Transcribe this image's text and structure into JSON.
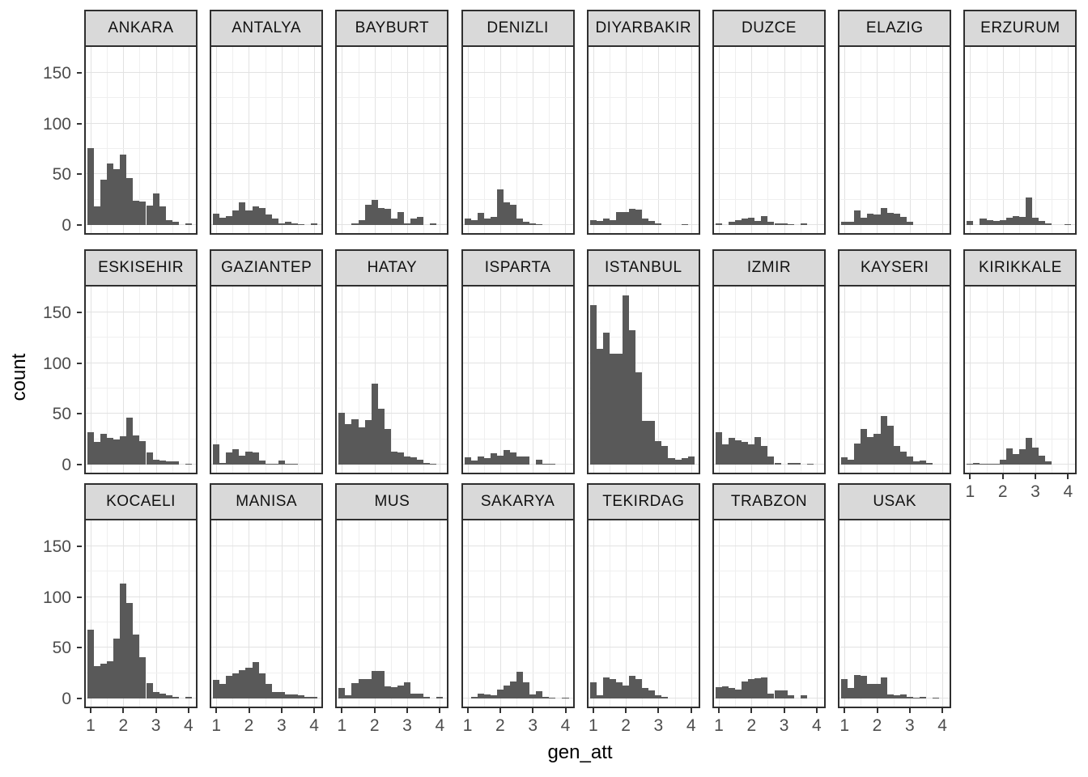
{
  "figure": {
    "y_axis_title": "count",
    "x_axis_title": "gen_att"
  },
  "style": {
    "bar_color": "#595959",
    "strip_background": "#D9D9D9",
    "panel_border": "#2F2F2F",
    "grid_major": "#E2E2E2",
    "grid_minor": "#EFEFEF",
    "tick_label_color": "#4D4D4D"
  },
  "chart_data": {
    "type": "bar",
    "subtype": "faceted-histogram",
    "title": "",
    "xlabel": "gen_att",
    "ylabel": "count",
    "grid": true,
    "x_ticks": [
      1,
      2,
      3,
      4
    ],
    "x_tick_labels": [
      "1",
      "2",
      "3",
      "4"
    ],
    "y_ticks": [
      0,
      50,
      100,
      150
    ],
    "y_tick_labels": [
      "0",
      "50",
      "100",
      "150"
    ],
    "y_minor_gridlines": [
      25,
      75,
      125
    ],
    "x_minor_gridlines": [
      1.5,
      2.5,
      3.5
    ],
    "xlim": [
      0.85,
      4.35
    ],
    "ylim": [
      -10,
      174
    ],
    "bin_width": 0.2,
    "bin_centers": [
      1.0,
      1.2,
      1.4,
      1.6,
      1.8,
      2.0,
      2.2,
      2.4,
      2.6,
      2.8,
      3.0,
      3.2,
      3.4,
      3.6,
      3.8,
      4.0
    ],
    "facets": [
      {
        "label": "ANKARA",
        "counts": [
          76,
          18,
          45,
          61,
          55,
          69,
          46,
          24,
          23,
          19,
          31,
          18,
          5,
          3,
          0,
          2
        ]
      },
      {
        "label": "ANTALYA",
        "counts": [
          11,
          7,
          9,
          14,
          22,
          14,
          18,
          17,
          10,
          6,
          2,
          3,
          2,
          1,
          0,
          2
        ]
      },
      {
        "label": "BAYBURT",
        "counts": [
          0,
          0,
          2,
          5,
          20,
          25,
          17,
          16,
          6,
          13,
          2,
          6,
          8,
          0,
          2,
          0
        ]
      },
      {
        "label": "DENIZLI",
        "counts": [
          6,
          5,
          12,
          6,
          8,
          35,
          22,
          20,
          6,
          3,
          2,
          1,
          0,
          0,
          0,
          0
        ]
      },
      {
        "label": "DIYARBAKIR",
        "counts": [
          5,
          4,
          6,
          5,
          13,
          13,
          16,
          15,
          6,
          4,
          2,
          0,
          0,
          0,
          1,
          0
        ]
      },
      {
        "label": "DUZCE",
        "counts": [
          2,
          0,
          3,
          5,
          6,
          7,
          4,
          9,
          3,
          2,
          2,
          1,
          0,
          2,
          0,
          0
        ]
      },
      {
        "label": "ELAZIG",
        "counts": [
          3,
          3,
          14,
          7,
          11,
          10,
          17,
          12,
          11,
          8,
          3,
          0,
          0,
          0,
          0,
          0
        ]
      },
      {
        "label": "ERZURUM",
        "counts": [
          4,
          0,
          6,
          5,
          4,
          5,
          7,
          9,
          8,
          27,
          7,
          4,
          2,
          0,
          0,
          1
        ]
      },
      {
        "label": "ESKISEHIR",
        "counts": [
          32,
          22,
          30,
          26,
          25,
          28,
          46,
          29,
          23,
          12,
          5,
          4,
          3,
          3,
          0,
          1
        ]
      },
      {
        "label": "GAZIANTEP",
        "counts": [
          20,
          2,
          12,
          15,
          9,
          13,
          12,
          4,
          1,
          1,
          4,
          1,
          1,
          0,
          0,
          0
        ]
      },
      {
        "label": "HATAY",
        "counts": [
          51,
          40,
          45,
          37,
          44,
          80,
          55,
          35,
          13,
          12,
          8,
          7,
          5,
          2,
          1,
          0
        ]
      },
      {
        "label": "ISPARTA",
        "counts": [
          7,
          4,
          8,
          6,
          11,
          9,
          14,
          12,
          8,
          8,
          0,
          5,
          1,
          1,
          0,
          0
        ]
      },
      {
        "label": "ISTANBUL",
        "counts": [
          157,
          114,
          130,
          109,
          109,
          167,
          132,
          91,
          43,
          43,
          23,
          18,
          6,
          5,
          6,
          8
        ]
      },
      {
        "label": "IZMIR",
        "counts": [
          32,
          20,
          26,
          24,
          22,
          20,
          27,
          18,
          8,
          2,
          0,
          2,
          2,
          0,
          1,
          0
        ]
      },
      {
        "label": "KAYSERI",
        "counts": [
          7,
          5,
          21,
          35,
          27,
          30,
          48,
          38,
          18,
          13,
          8,
          3,
          4,
          2,
          0,
          0
        ]
      },
      {
        "label": "KIRIKKALE",
        "counts": [
          1,
          2,
          1,
          1,
          1,
          5,
          16,
          10,
          15,
          26,
          17,
          9,
          3,
          0,
          0,
          0
        ]
      },
      {
        "label": "KOCAELI",
        "counts": [
          68,
          32,
          34,
          37,
          59,
          113,
          94,
          63,
          41,
          15,
          6,
          5,
          3,
          2,
          0,
          2
        ]
      },
      {
        "label": "MANISA",
        "counts": [
          18,
          14,
          22,
          25,
          28,
          30,
          36,
          25,
          14,
          6,
          6,
          4,
          4,
          3,
          2,
          2
        ]
      },
      {
        "label": "MUS",
        "counts": [
          10,
          3,
          15,
          19,
          19,
          27,
          27,
          12,
          11,
          13,
          16,
          5,
          5,
          2,
          0,
          2
        ]
      },
      {
        "label": "SAKARYA",
        "counts": [
          0,
          2,
          5,
          4,
          3,
          9,
          13,
          17,
          26,
          16,
          4,
          7,
          2,
          1,
          0,
          1
        ]
      },
      {
        "label": "TEKIRDAG",
        "counts": [
          16,
          3,
          21,
          19,
          16,
          13,
          22,
          19,
          10,
          8,
          3,
          2,
          0,
          0,
          0,
          0
        ]
      },
      {
        "label": "TRABZON",
        "counts": [
          11,
          12,
          10,
          9,
          17,
          19,
          20,
          21,
          5,
          8,
          8,
          3,
          0,
          3,
          0,
          0
        ]
      },
      {
        "label": "USAK",
        "counts": [
          19,
          10,
          23,
          22,
          14,
          14,
          21,
          4,
          3,
          4,
          2,
          1,
          2,
          0,
          1,
          0
        ]
      }
    ]
  }
}
